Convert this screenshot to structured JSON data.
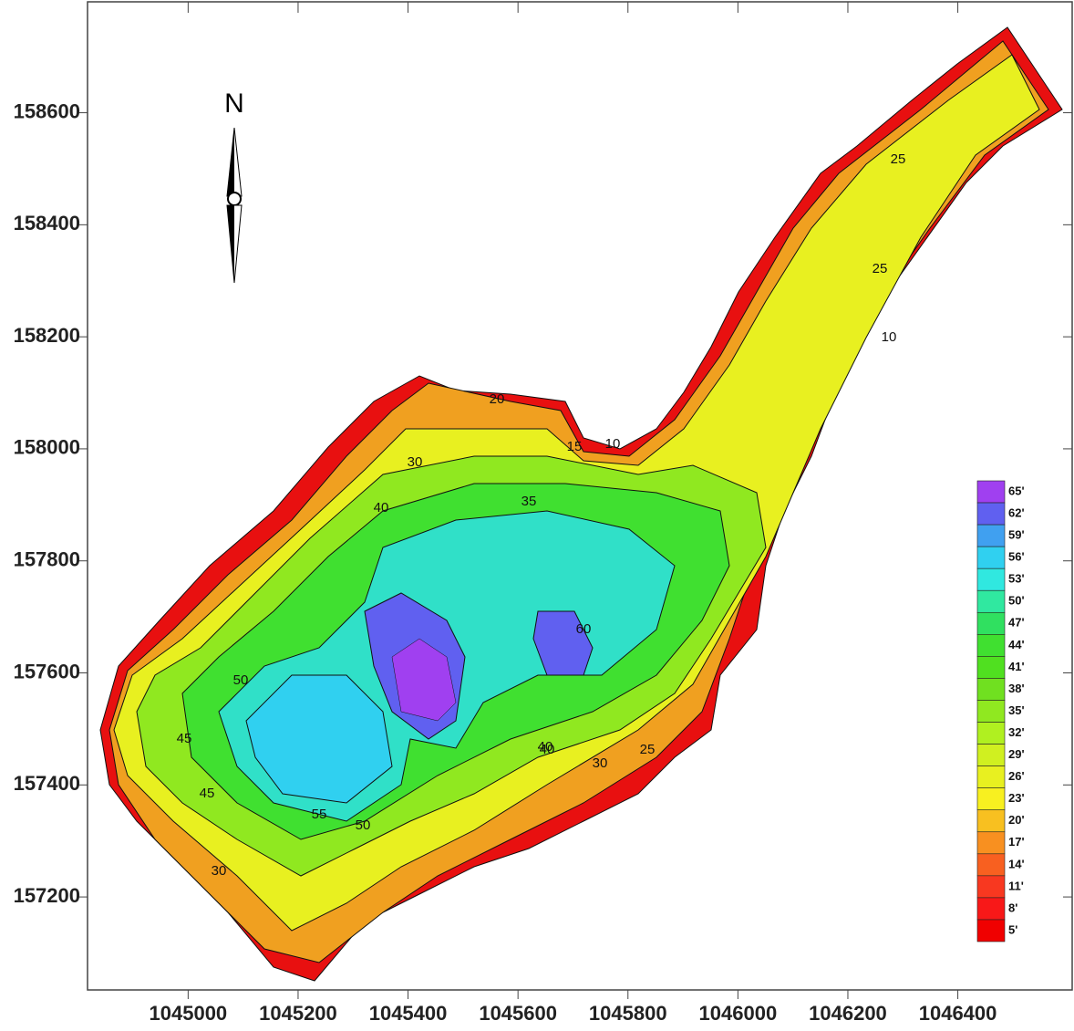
{
  "map": {
    "north": "N",
    "xlim": [
      1044817,
      1046608
    ],
    "ylim": [
      157034,
      158798
    ],
    "xticks": [
      1045000,
      1045200,
      1045400,
      1045600,
      1045800,
      1046000,
      1046200,
      1046400
    ],
    "yticks": [
      157200,
      157400,
      157600,
      157800,
      158000,
      158200,
      158400,
      158600
    ],
    "colorbar": {
      "levels": [
        {
          "value": 65,
          "label": "65'"
        },
        {
          "value": 62,
          "label": "62'"
        },
        {
          "value": 59,
          "label": "59'"
        },
        {
          "value": 56,
          "label": "56'"
        },
        {
          "value": 53,
          "label": "53'"
        },
        {
          "value": 50,
          "label": "50'"
        },
        {
          "value": 47,
          "label": "47'"
        },
        {
          "value": 44,
          "label": "44'"
        },
        {
          "value": 41,
          "label": "41'"
        },
        {
          "value": 38,
          "label": "38'"
        },
        {
          "value": 35,
          "label": "35'"
        },
        {
          "value": 32,
          "label": "32'"
        },
        {
          "value": 29,
          "label": "29'"
        },
        {
          "value": 26,
          "label": "26'"
        },
        {
          "value": 23,
          "label": "23'"
        },
        {
          "value": 20,
          "label": "20'"
        },
        {
          "value": 17,
          "label": "17'"
        },
        {
          "value": 14,
          "label": "14'"
        },
        {
          "value": 11,
          "label": "11'"
        },
        {
          "value": 8,
          "label": "8'"
        },
        {
          "value": 5,
          "label": "5'"
        }
      ],
      "colors": [
        "#a040f0",
        "#6060f0",
        "#40a0f0",
        "#30d0f0",
        "#30e8e0",
        "#30e8a0",
        "#30e060",
        "#40e030",
        "#50e020",
        "#70e020",
        "#90e820",
        "#b0f020",
        "#d0f020",
        "#e8f020",
        "#f8f020",
        "#f8c020",
        "#f89020",
        "#f86020",
        "#f83820",
        "#f81818",
        "#f00000"
      ]
    },
    "contour_labels": [
      20,
      30,
      45,
      55,
      50,
      40,
      60,
      25,
      15,
      10,
      30,
      40,
      45,
      50,
      35,
      25,
      30,
      40,
      10,
      25
    ]
  }
}
